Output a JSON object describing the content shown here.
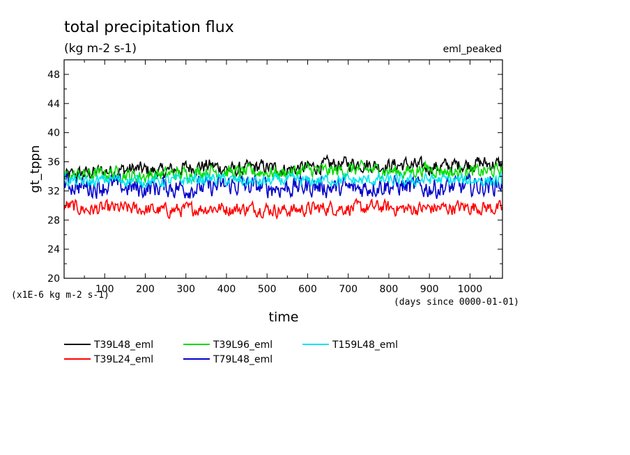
{
  "chart_data": {
    "type": "line",
    "title": "total precipitation flux",
    "subtitle": "(kg m-2 s-1)",
    "annotation": "eml_peaked",
    "xlabel": "time",
    "x_unit": "(days since 0000-01-01)",
    "ylabel": "gt_tppn",
    "y_unit": "(x1E-6 kg m-2 s-1)",
    "xlim": [
      0,
      1080
    ],
    "ylim": [
      20,
      50
    ],
    "x_ticks": [
      100,
      200,
      300,
      400,
      500,
      600,
      700,
      800,
      900,
      1000
    ],
    "y_ticks": [
      20,
      24,
      28,
      32,
      36,
      40,
      44,
      48
    ],
    "x_tick_labels": [
      "100",
      "200",
      "300",
      "400",
      "500",
      "600",
      "700",
      "800",
      "900",
      "1000"
    ],
    "y_tick_labels": [
      "20",
      "24",
      "28",
      "32",
      "36",
      "40",
      "44",
      "48"
    ],
    "grid": false,
    "legend_position": "bottom-left",
    "series": [
      {
        "name": "T39L48_eml",
        "color": "#000000",
        "x": [
          0,
          60,
          120,
          180,
          240,
          300,
          360,
          420,
          480,
          540,
          600,
          660,
          720,
          780,
          840,
          900,
          960,
          1020,
          1080
        ],
        "y": [
          34,
          34.5,
          34.8,
          35,
          34.6,
          35.2,
          35.5,
          34.8,
          35.3,
          34.9,
          35.2,
          35.6,
          35.8,
          35.4,
          35.6,
          35.2,
          35.5,
          35.8,
          35.6
        ],
        "mean": 35.0,
        "amp": 1.6
      },
      {
        "name": "T39L24_eml",
        "color": "#ff0000",
        "x": [
          0,
          60,
          120,
          180,
          240,
          300,
          360,
          420,
          480,
          540,
          600,
          660,
          720,
          780,
          840,
          900,
          960,
          1020,
          1080
        ],
        "y": [
          30,
          29.4,
          29.6,
          29.5,
          29.3,
          29.4,
          29.7,
          29.5,
          29.6,
          29.3,
          29.5,
          29.7,
          29.6,
          29.8,
          29.5,
          29.6,
          29.7,
          29.8,
          29.5
        ],
        "mean": 29.5,
        "amp": 1.5
      },
      {
        "name": "T39L96_eml",
        "color": "#00dd00",
        "x": [
          0,
          60,
          120,
          180,
          240,
          300,
          360,
          420,
          480,
          540,
          600,
          660,
          720,
          780,
          840,
          900,
          960,
          1020,
          1080
        ],
        "y": [
          34,
          34.2,
          34.5,
          34.0,
          34.3,
          34.4,
          34.8,
          34.5,
          34.6,
          34.4,
          34.9,
          34.7,
          35.0,
          34.8,
          34.6,
          35.1,
          34.5,
          34.6,
          34.8
        ],
        "mean": 34.5,
        "amp": 1.5
      },
      {
        "name": "T79L48_eml",
        "color": "#0000cc",
        "x": [
          0,
          60,
          120,
          180,
          240,
          300,
          360,
          420,
          480,
          540,
          600,
          660,
          720,
          780,
          840,
          900,
          960,
          1020,
          1080
        ],
        "y": [
          33,
          32.5,
          32.8,
          32.3,
          32.6,
          32.4,
          32.5,
          32.8,
          32.6,
          32.4,
          32.7,
          32.5,
          32.3,
          32.8,
          32.6,
          32.4,
          32.5,
          32.7,
          33
        ],
        "mean": 32.5,
        "amp": 2.2
      },
      {
        "name": "T159L48_eml",
        "color": "#00e5ee",
        "x": [
          0,
          60,
          120,
          180,
          240,
          300,
          360,
          420,
          480,
          540,
          600,
          660,
          720,
          780,
          840,
          900,
          960,
          1020,
          1080
        ],
        "y": [
          33.5,
          33.2,
          33.6,
          33.4,
          33.3,
          33.5,
          33.7,
          33.4,
          33.2,
          33.5,
          33.3,
          33.6,
          33.4,
          33.5,
          33.3,
          33.6,
          33.4,
          33.5,
          33.3
        ],
        "mean": 33.4,
        "amp": 1.3
      }
    ]
  }
}
